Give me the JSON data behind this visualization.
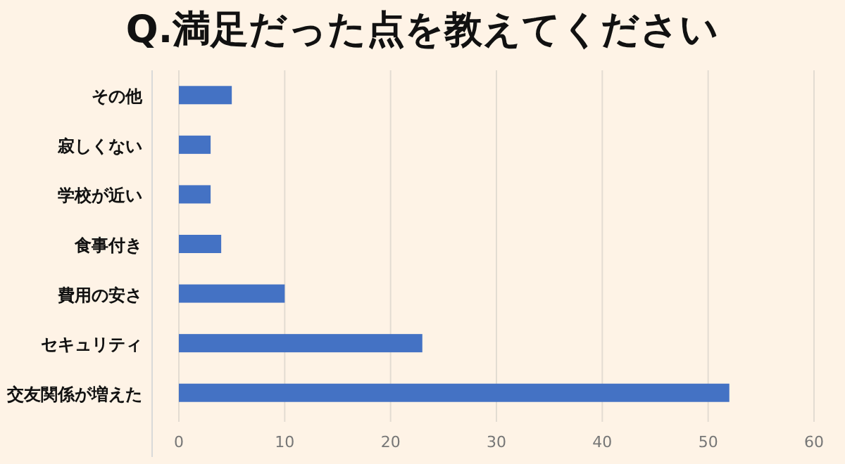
{
  "chart_data": {
    "type": "bar",
    "orientation": "horizontal",
    "title": "Q.満足だった点を教えてください",
    "categories": [
      "その他",
      "寂しくない",
      "学校が近い",
      "食事付き",
      "費用の安さ",
      "セキュリティ",
      "交友関係が増えた"
    ],
    "values": [
      5,
      3,
      3,
      4,
      10,
      23,
      52
    ],
    "color": "#4472c4",
    "xlim": [
      0,
      60
    ],
    "xticks": [
      0,
      10,
      20,
      30,
      40,
      50,
      60
    ],
    "grid": "x"
  }
}
